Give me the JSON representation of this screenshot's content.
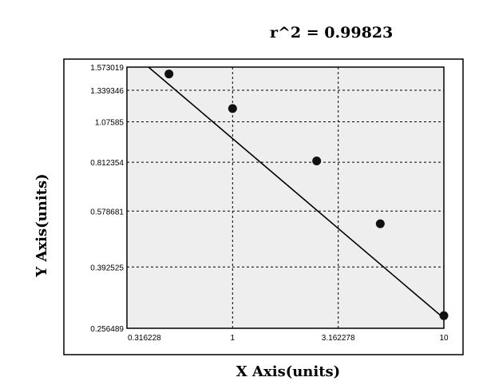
{
  "chart_data": {
    "type": "scatter",
    "annotation": "r^2  =  0.99823",
    "xlabel": "X Axis(units)",
    "ylabel": "Y Axis(units)",
    "x_scale": "log",
    "y_scale": "log",
    "xlim": [
      0.316228,
      10
    ],
    "ylim": [
      0.256489,
      1.573019
    ],
    "x_ticks": [
      "0.316228",
      "1",
      "3.162278",
      "10"
    ],
    "x_tick_values": [
      0.316228,
      1,
      3.162278,
      10
    ],
    "y_ticks": [
      "1.573019",
      "1.339346",
      "1.07585",
      "0.812354",
      "0.578681",
      "0.392525",
      "0.256489"
    ],
    "y_tick_values": [
      1.573019,
      1.339346,
      1.07585,
      0.812354,
      0.578681,
      0.392525,
      0.256489
    ],
    "grid": true,
    "points": [
      {
        "x": 0.5,
        "y": 1.5
      },
      {
        "x": 1.0,
        "y": 1.18
      },
      {
        "x": 2.5,
        "y": 0.82
      },
      {
        "x": 5.0,
        "y": 0.53
      },
      {
        "x": 10.0,
        "y": 0.28
      }
    ],
    "fit_line": [
      {
        "x": 0.4,
        "y": 1.62
      },
      {
        "x": 10.0,
        "y": 0.275
      }
    ]
  }
}
